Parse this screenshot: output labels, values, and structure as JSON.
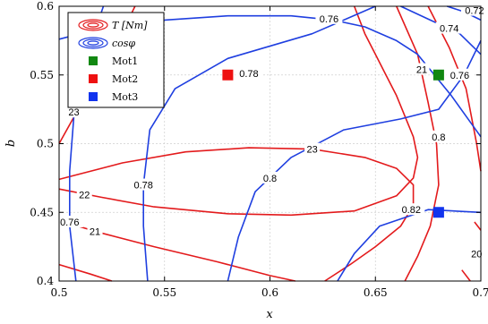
{
  "chart_data": {
    "type": "contour",
    "xlabel": "x",
    "ylabel": "b",
    "xlim": [
      0.5,
      0.7
    ],
    "ylim": [
      0.4,
      0.6
    ],
    "xticks": [
      "0.5",
      "0.55",
      "0.6",
      "0.65",
      "0.7"
    ],
    "yticks": [
      "0.4",
      "0.45",
      "0.5",
      "0.55",
      "0.6"
    ],
    "grid": true,
    "legend_position": "top-left",
    "colors": {
      "torque": "#e31a1c",
      "cosphi": "#1f3fe0",
      "mot1": "#118811",
      "mot2": "#ee1111",
      "mot3": "#1133ee"
    },
    "legend": [
      {
        "label": "T [Nm]",
        "style": "contour",
        "color": "torque"
      },
      {
        "label": "cosφ",
        "style": "contour",
        "color": "cosphi"
      },
      {
        "label": "Mot1",
        "style": "square",
        "color": "mot1"
      },
      {
        "label": "Mot2",
        "style": "square",
        "color": "mot2"
      },
      {
        "label": "Mot3",
        "style": "square",
        "color": "mot3"
      }
    ],
    "torque_contours": [
      {
        "level": "23",
        "label_at": [
          0.507,
          0.523
        ],
        "points": [
          [
            0.536,
            0.6
          ],
          [
            0.528,
            0.575
          ],
          [
            0.518,
            0.548
          ],
          [
            0.508,
            0.522
          ],
          [
            0.5,
            0.5
          ]
        ]
      },
      {
        "level": "23",
        "label_at": [
          0.62,
          0.496
        ],
        "points": [
          [
            0.5,
            0.474
          ],
          [
            0.53,
            0.486
          ],
          [
            0.56,
            0.494
          ],
          [
            0.59,
            0.497
          ],
          [
            0.62,
            0.496
          ],
          [
            0.645,
            0.49
          ],
          [
            0.66,
            0.482
          ],
          [
            0.668,
            0.47
          ],
          [
            0.668,
            0.455
          ],
          [
            0.662,
            0.44
          ],
          [
            0.65,
            0.425
          ],
          [
            0.638,
            0.412
          ],
          [
            0.626,
            0.4
          ]
        ]
      },
      {
        "level": "22",
        "label_at": [
          0.512,
          0.463
        ],
        "points": [
          [
            0.5,
            0.467
          ],
          [
            0.52,
            0.461
          ],
          [
            0.545,
            0.454
          ],
          [
            0.58,
            0.449
          ],
          [
            0.61,
            0.448
          ],
          [
            0.64,
            0.451
          ],
          [
            0.66,
            0.462
          ],
          [
            0.668,
            0.475
          ],
          [
            0.67,
            0.49
          ],
          [
            0.668,
            0.505
          ],
          [
            0.664,
            0.52
          ],
          [
            0.66,
            0.535
          ],
          [
            0.655,
            0.55
          ],
          [
            0.65,
            0.565
          ],
          [
            0.645,
            0.58
          ],
          [
            0.64,
            0.6
          ]
        ]
      },
      {
        "level": "21",
        "label_at": [
          0.517,
          0.436
        ],
        "points": [
          [
            0.5,
            0.444
          ],
          [
            0.52,
            0.435
          ],
          [
            0.545,
            0.425
          ],
          [
            0.575,
            0.414
          ],
          [
            0.6,
            0.404
          ],
          [
            0.612,
            0.4
          ]
        ]
      },
      {
        "level": "21",
        "label_at": [
          0.672,
          0.554
        ],
        "points": [
          [
            0.66,
            0.6
          ],
          [
            0.67,
            0.565
          ],
          [
            0.675,
            0.53
          ],
          [
            0.679,
            0.5
          ],
          [
            0.68,
            0.47
          ],
          [
            0.676,
            0.44
          ],
          [
            0.67,
            0.418
          ],
          [
            0.664,
            0.4
          ]
        ]
      },
      {
        "level": "20",
        "label_at": [
          0.698,
          0.42
        ],
        "points": [
          [
            0.675,
            0.6
          ],
          [
            0.685,
            0.57
          ],
          [
            0.693,
            0.54
          ],
          [
            0.698,
            0.5
          ],
          [
            0.7,
            0.48
          ]
        ]
      },
      {
        "level": "",
        "label_at": null,
        "points": [
          [
            0.5,
            0.412
          ],
          [
            0.515,
            0.405
          ],
          [
            0.525,
            0.4
          ]
        ]
      },
      {
        "level": "",
        "label_at": null,
        "points": [
          [
            0.697,
            0.443
          ],
          [
            0.7,
            0.437
          ]
        ]
      },
      {
        "level": "",
        "label_at": null,
        "points": [
          [
            0.691,
            0.408
          ],
          [
            0.695,
            0.4
          ]
        ]
      }
    ],
    "cosphi_contours": [
      {
        "level": "0.76",
        "label_at": [
          0.505,
          0.443
        ],
        "points": [
          [
            0.521,
            0.6
          ],
          [
            0.512,
            0.56
          ],
          [
            0.507,
            0.52
          ],
          [
            0.505,
            0.48
          ],
          [
            0.505,
            0.44
          ],
          [
            0.508,
            0.4
          ]
        ]
      },
      {
        "level": "0.78",
        "label_at": [
          0.54,
          0.47
        ],
        "points": [
          [
            0.65,
            0.6
          ],
          [
            0.62,
            0.58
          ],
          [
            0.58,
            0.562
          ],
          [
            0.555,
            0.54
          ],
          [
            0.543,
            0.51
          ],
          [
            0.54,
            0.47
          ],
          [
            0.54,
            0.44
          ],
          [
            0.542,
            0.4
          ]
        ]
      },
      {
        "level": "0.78",
        "label_at": [
          0.59,
          0.551
        ],
        "points": [
          [
            0.6,
            0.552
          ]
        ]
      },
      {
        "level": "0.76",
        "label_at": [
          0.628,
          0.591
        ],
        "points": [
          [
            0.5,
            0.576
          ],
          [
            0.52,
            0.584
          ],
          [
            0.55,
            0.59
          ],
          [
            0.58,
            0.593
          ],
          [
            0.61,
            0.593
          ],
          [
            0.63,
            0.59
          ],
          [
            0.645,
            0.585
          ],
          [
            0.66,
            0.575
          ],
          [
            0.67,
            0.565
          ],
          [
            0.678,
            0.55
          ],
          [
            0.686,
            0.535
          ],
          [
            0.693,
            0.52
          ],
          [
            0.7,
            0.505
          ]
        ]
      },
      {
        "level": "0.8",
        "label_at": [
          0.6,
          0.475
        ],
        "points": [
          [
            0.58,
            0.4
          ],
          [
            0.585,
            0.432
          ],
          [
            0.593,
            0.465
          ],
          [
            0.61,
            0.49
          ],
          [
            0.635,
            0.51
          ],
          [
            0.662,
            0.518
          ],
          [
            0.68,
            0.525
          ],
          [
            0.692,
            0.55
          ],
          [
            0.7,
            0.575
          ]
        ]
      },
      {
        "level": "0.8",
        "label_at": [
          0.68,
          0.505
        ],
        "points": [
          [
            0.7,
            0.497
          ]
        ]
      },
      {
        "level": "0.82",
        "label_at": [
          0.667,
          0.452
        ],
        "points": [
          [
            0.632,
            0.4
          ],
          [
            0.64,
            0.42
          ],
          [
            0.652,
            0.44
          ],
          [
            0.675,
            0.452
          ],
          [
            0.7,
            0.45
          ]
        ]
      },
      {
        "level": "0.74",
        "label_at": [
          0.685,
          0.584
        ],
        "points": [
          [
            0.662,
            0.6
          ],
          [
            0.676,
            0.59
          ],
          [
            0.69,
            0.58
          ],
          [
            0.7,
            0.565
          ]
        ]
      },
      {
        "level": "0.72",
        "label_at": [
          0.697,
          0.597
        ],
        "points": [
          [
            0.684,
            0.6
          ],
          [
            0.692,
            0.596
          ],
          [
            0.7,
            0.59
          ]
        ]
      },
      {
        "level": "0.76",
        "label_at": [
          0.69,
          0.55
        ],
        "points": [
          [
            0.7,
            0.54
          ]
        ]
      },
      {
        "level": "",
        "label_at": null,
        "points": [
          [
            0.7,
            0.445
          ]
        ]
      }
    ],
    "markers": [
      {
        "name": "Mot1",
        "x": 0.68,
        "y": 0.55,
        "color": "mot1"
      },
      {
        "name": "Mot2",
        "x": 0.58,
        "y": 0.55,
        "color": "mot2"
      },
      {
        "name": "Mot3",
        "x": 0.68,
        "y": 0.45,
        "color": "mot3"
      }
    ]
  }
}
